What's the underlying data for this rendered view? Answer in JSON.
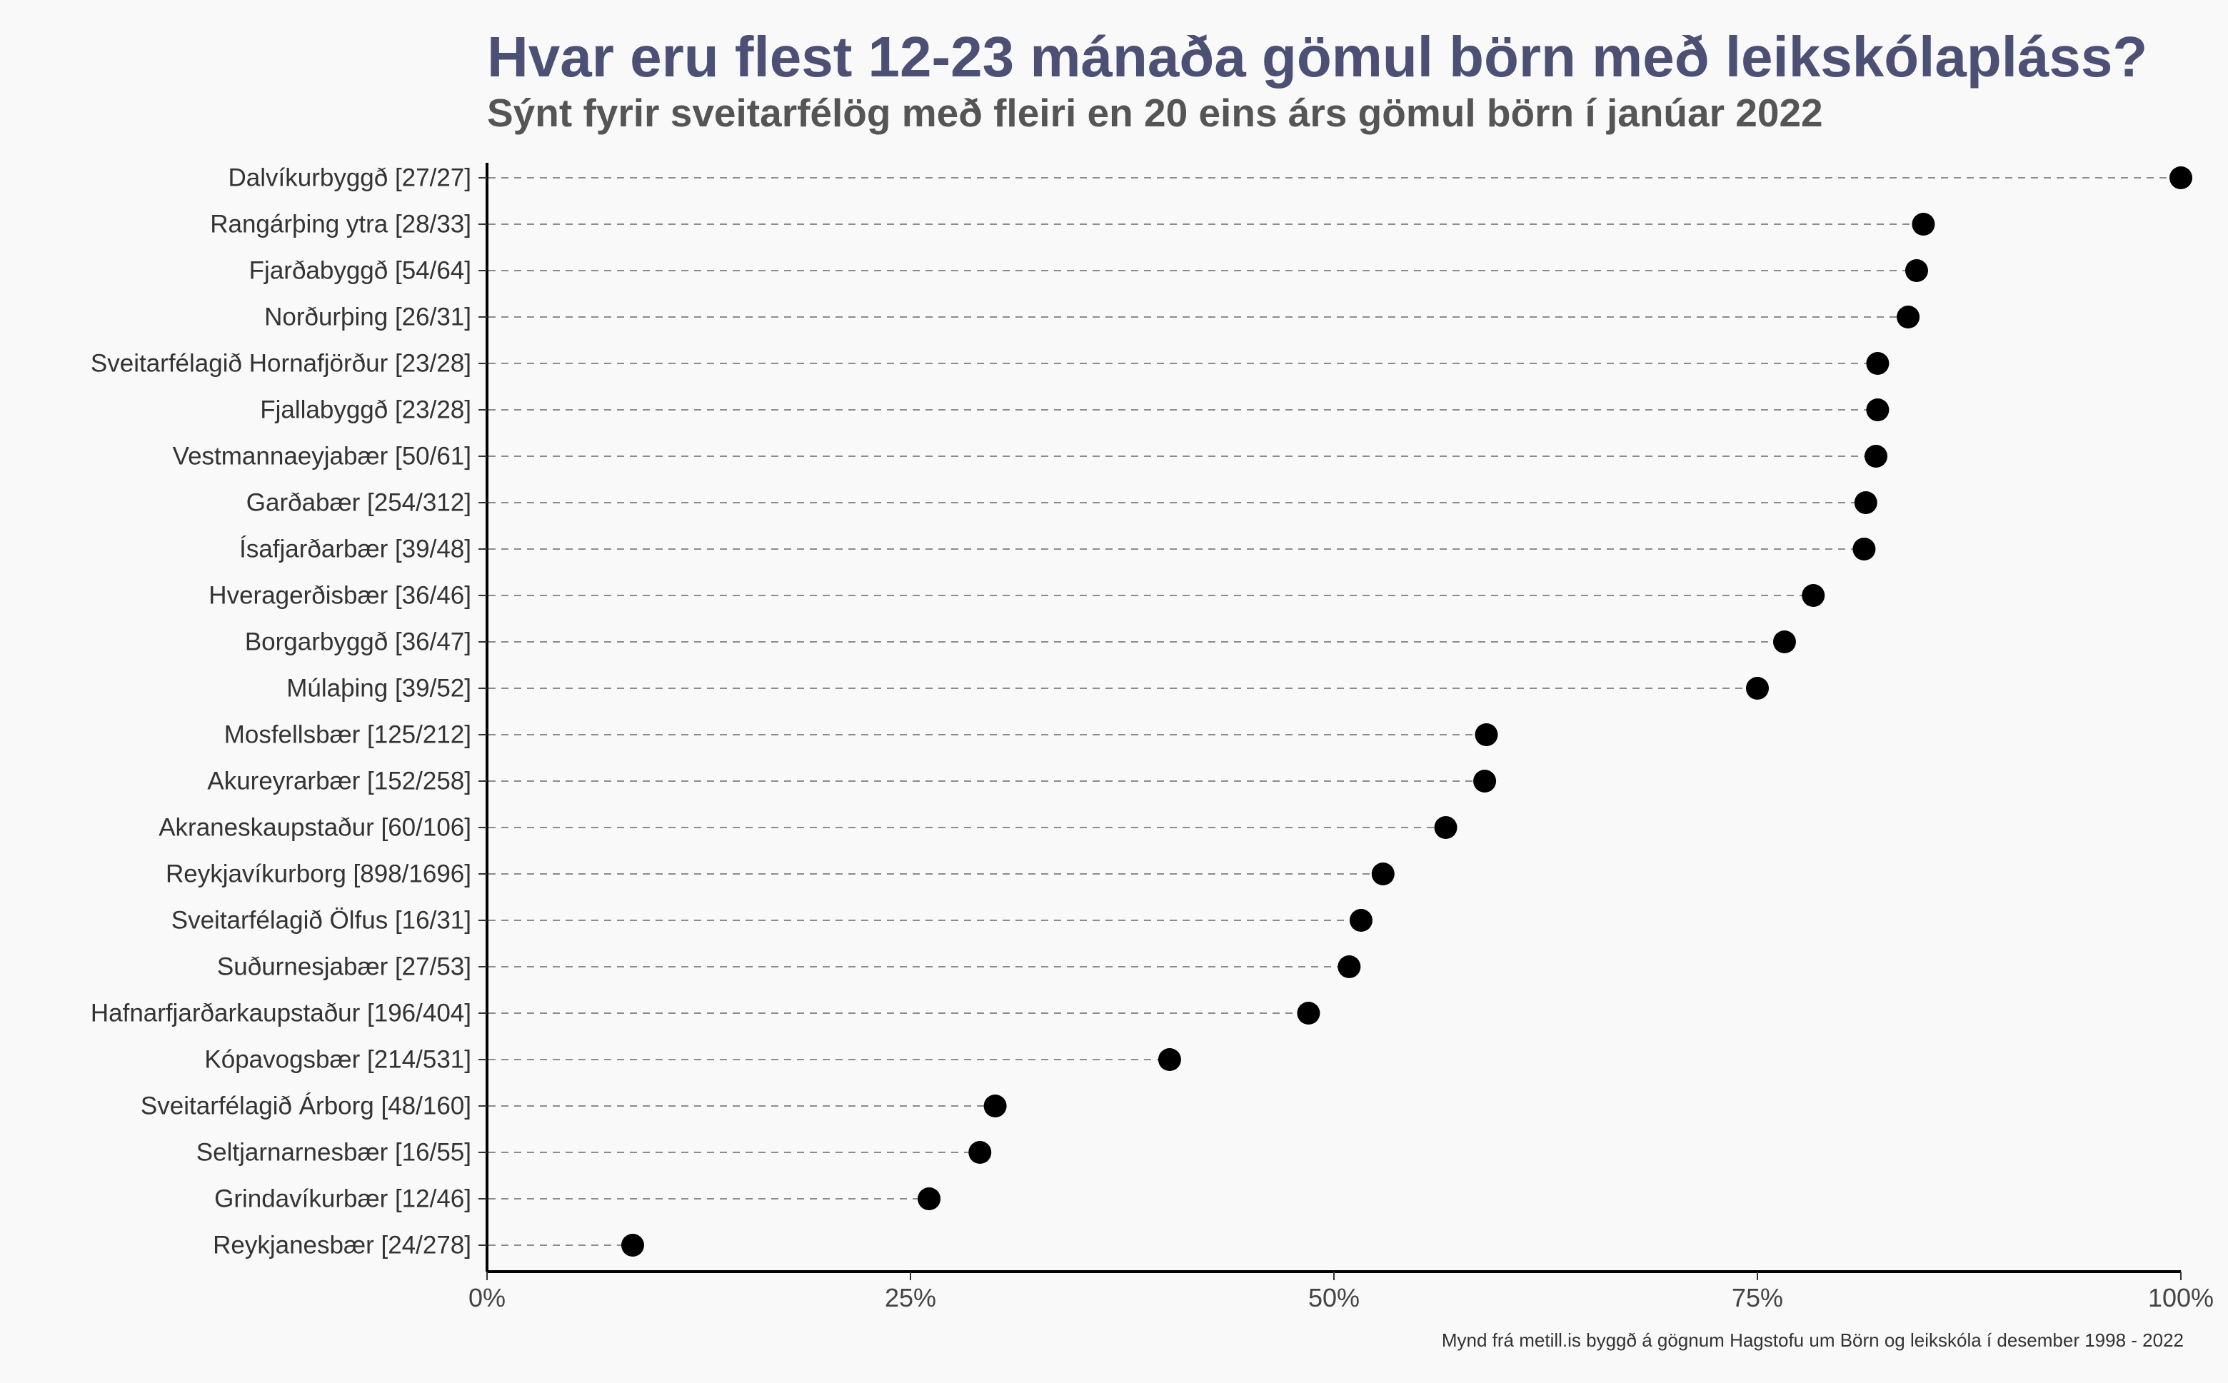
{
  "chart_data": {
    "type": "scatter",
    "title": "Hvar eru flest 12-23 mánaða gömul börn með leikskólapláss?",
    "subtitle": "Sýnt fyrir sveitarfélög með fleiri en 20 eins árs gömul börn í janúar 2022",
    "caption": "Mynd frá metill.is byggð á gögnum Hagstofu um Börn og leikskóla í desember 1998 - 2022",
    "xlim": [
      0,
      1
    ],
    "x_ticks": [
      0,
      0.25,
      0.5,
      0.75,
      1
    ],
    "x_tick_labels": [
      "0%",
      "25%",
      "50%",
      "75%",
      "100%"
    ],
    "grid": false,
    "legend": "none",
    "point_color": "#000000",
    "title_color": "#4b5074",
    "categories": [
      "Dalvíkurbyggð [27/27]",
      "Rangárþing ytra [28/33]",
      "Fjarðabyggð [54/64]",
      "Norðurþing [26/31]",
      "Sveitarfélagið Hornafjörður [23/28]",
      "Fjallabyggð [23/28]",
      "Vestmannaeyjabær [50/61]",
      "Garðabær [254/312]",
      "Ísafjarðarbær [39/48]",
      "Hveragerðisbær [36/46]",
      "Borgarbyggð [36/47]",
      "Múlaþing [39/52]",
      "Mosfellsbær [125/212]",
      "Akureyrarbær [152/258]",
      "Akraneskaupstaður [60/106]",
      "Reykjavíkurborg [898/1696]",
      "Sveitarfélagið Ölfus [16/31]",
      "Suðurnesjabær [27/53]",
      "Hafnarfjarðarkaupstaður [196/404]",
      "Kópavogsbær [214/531]",
      "Sveitarfélagið Árborg [48/160]",
      "Seltjarnarnesbær [16/55]",
      "Grindavíkurbær [12/46]",
      "Reykjanesbær [24/278]"
    ],
    "values": [
      1.0,
      0.848,
      0.844,
      0.839,
      0.821,
      0.821,
      0.82,
      0.814,
      0.813,
      0.783,
      0.766,
      0.75,
      0.59,
      0.589,
      0.566,
      0.529,
      0.516,
      0.509,
      0.485,
      0.403,
      0.3,
      0.291,
      0.261,
      0.086
    ]
  }
}
